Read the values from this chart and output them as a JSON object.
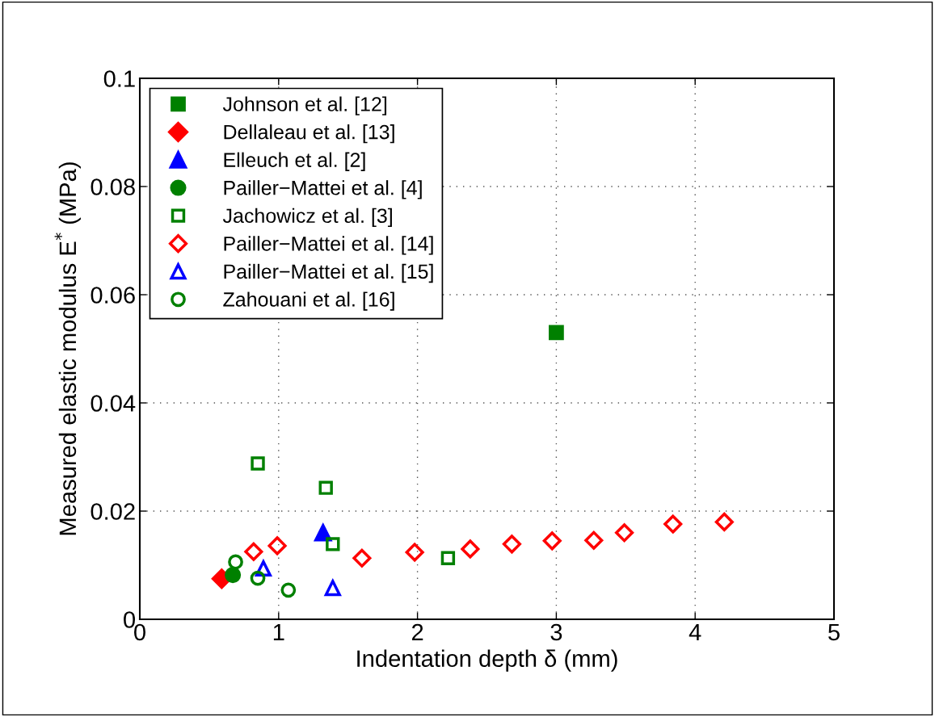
{
  "chart_data": {
    "type": "scatter",
    "xlabel": "Indentation depth δ (mm)",
    "ylabel": "Measured elastic modulus E$^{*}$ (MPa)",
    "xlim": [
      0,
      5
    ],
    "xticks": [
      0,
      1,
      2,
      3,
      4,
      5
    ],
    "ylim": [
      0,
      0.1
    ],
    "yticks": [
      0,
      0.02,
      0.04,
      0.06,
      0.08,
      0.1
    ],
    "grid": true,
    "legend": "top left",
    "series": [
      {
        "name": "Johnson et al. [12]",
        "color": "#008000",
        "marker": "square",
        "x": [
          3.0
        ],
        "values": [
          0.053
        ]
      },
      {
        "name": "Dellaleau et al. [13]",
        "color": "#ff0000",
        "marker": "diamond",
        "x": [
          0.59
        ],
        "values": [
          0.0075
        ]
      },
      {
        "name": "Elleuch et al. [2]",
        "color": "#0000ff",
        "marker": "triangle",
        "x": [
          1.32
        ],
        "values": [
          0.016
        ]
      },
      {
        "name": "Pailler−Mattei et al. [4]",
        "color": "#008000",
        "marker": "circle",
        "x": [
          0.67
        ],
        "values": [
          0.0082
        ]
      },
      {
        "name": "Jachowicz et al. [3]",
        "color": "#008000",
        "marker": "square",
        "x": [
          0.85,
          1.34,
          1.39,
          2.22
        ],
        "values": [
          0.0288,
          0.0243,
          0.0139,
          0.0113
        ]
      },
      {
        "name": "Pailler−Mattei et al. [14]",
        "color": "#ff0000",
        "marker": "diamond",
        "x": [
          0.82,
          0.99,
          1.6,
          1.98,
          2.38,
          2.68,
          2.97,
          3.27,
          3.49,
          3.84,
          4.21
        ],
        "values": [
          0.0125,
          0.0136,
          0.0113,
          0.0124,
          0.013,
          0.0139,
          0.0145,
          0.0146,
          0.016,
          0.0176,
          0.018
        ]
      },
      {
        "name": "Pailler−Mattei et al. [15]",
        "color": "#0000ff",
        "marker": "triangle",
        "x": [
          0.89,
          1.39
        ],
        "values": [
          0.0094,
          0.0058
        ]
      },
      {
        "name": "Zahouani et al. [16]",
        "color": "#008000",
        "marker": "circle",
        "x": [
          0.69,
          0.85,
          1.07
        ],
        "values": [
          0.0106,
          0.0076,
          0.0054
        ]
      }
    ]
  }
}
